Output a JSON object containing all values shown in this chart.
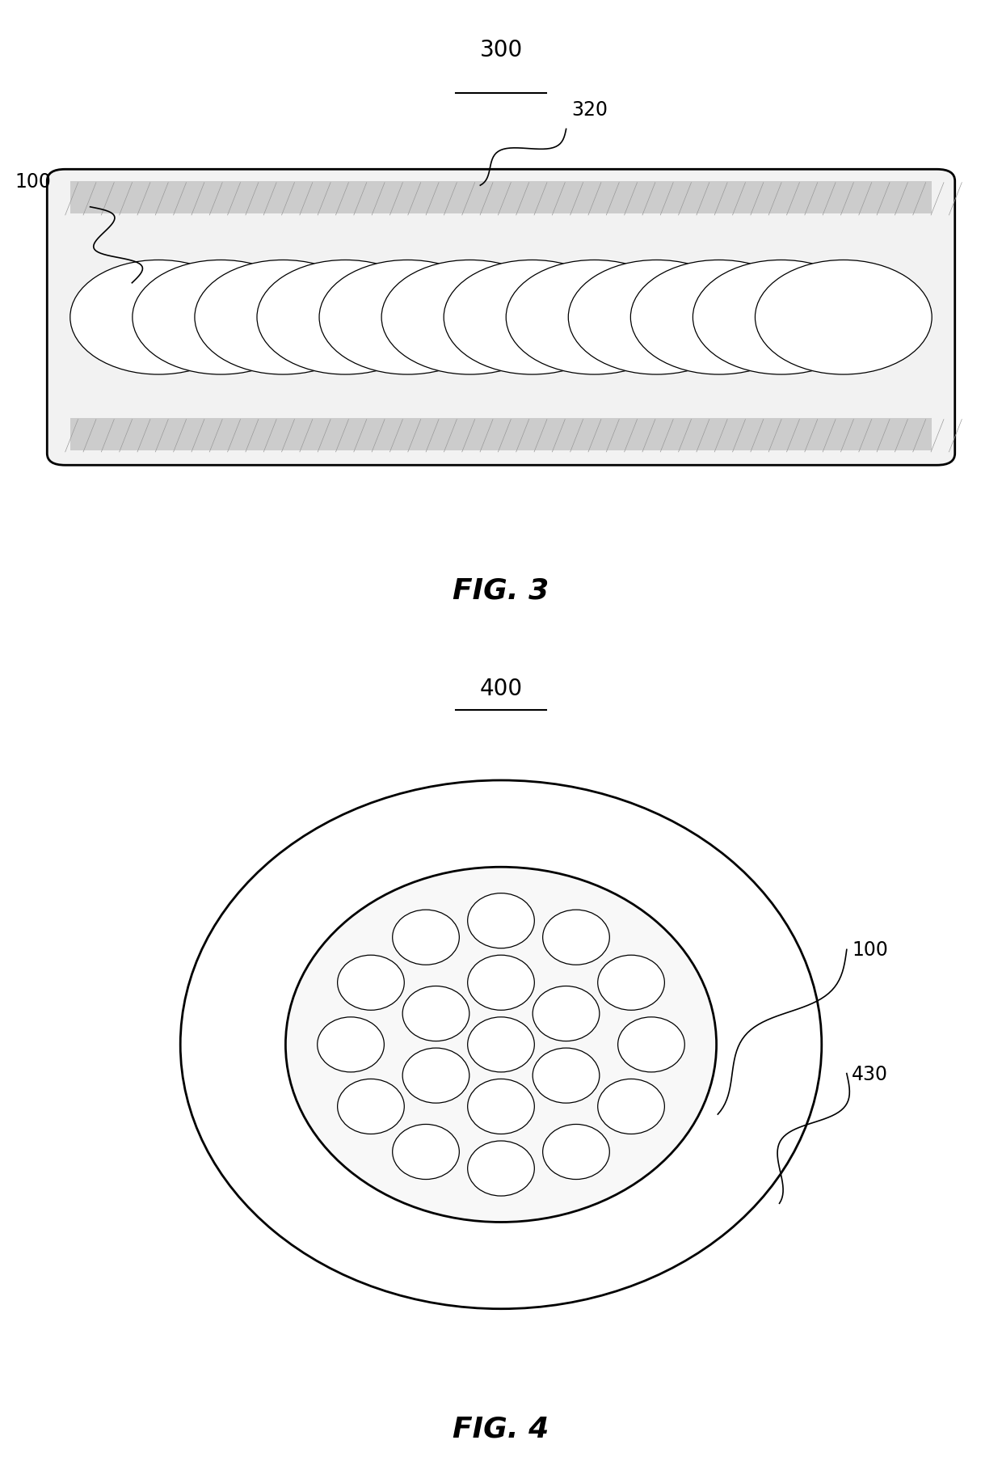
{
  "fig3_label": "300",
  "fig3_caption": "FIG. 3",
  "fig4_label": "400",
  "fig4_caption": "FIG. 4",
  "label_100": "100",
  "label_320": "320",
  "label_430": "430",
  "bg_color": "#ffffff",
  "line_color": "#000000",
  "fig3_n_fibers": 12,
  "fig4_outer_r": 0.32,
  "fig4_inner_r": 0.215,
  "fiber_radii_ratios": [
    1.0,
    0.72,
    0.48,
    0.28,
    0.13
  ],
  "fiber_colors": [
    "#ffffff",
    "#e0e0e0",
    "#ffffff",
    "#d0d0d0",
    "#707070"
  ]
}
